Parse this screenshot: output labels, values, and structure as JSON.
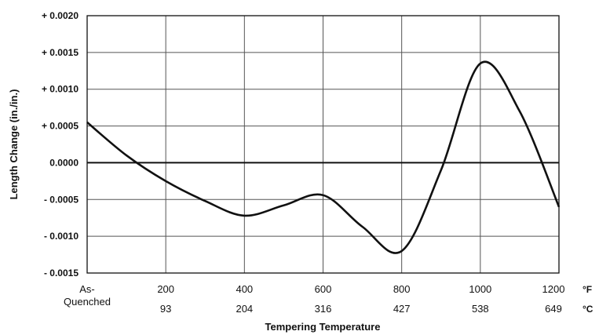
{
  "chart_data": {
    "type": "line",
    "title": "",
    "xlabel": "Tempering Temperature",
    "ylabel": "Length Change (in./in.)",
    "x_units": [
      "°F",
      "°C"
    ],
    "x_ticks": [
      {
        "f_lines": [
          "As-",
          "Quenched"
        ],
        "c": ""
      },
      {
        "f_lines": [
          "200"
        ],
        "c": "93"
      },
      {
        "f_lines": [
          "400"
        ],
        "c": "204"
      },
      {
        "f_lines": [
          "600"
        ],
        "c": "316"
      },
      {
        "f_lines": [
          "800"
        ],
        "c": "427"
      },
      {
        "f_lines": [
          "1000"
        ],
        "c": "538"
      },
      {
        "f_lines": [
          "1200"
        ],
        "c": "649"
      }
    ],
    "y_ticks": [
      {
        "value": 0.002,
        "label": "+ 0.0020"
      },
      {
        "value": 0.0015,
        "label": "+ 0.0015"
      },
      {
        "value": 0.001,
        "label": "+ 0.0010"
      },
      {
        "value": 0.0005,
        "label": "+ 0.0005"
      },
      {
        "value": 0.0,
        "label": "0.0000"
      },
      {
        "value": -0.0005,
        "label": "- 0.0005"
      },
      {
        "value": -0.001,
        "label": "- 0.0010"
      },
      {
        "value": -0.0015,
        "label": "- 0.0015"
      }
    ],
    "xlim": [
      0,
      1200
    ],
    "ylim": [
      -0.0015,
      0.002
    ],
    "grid": true,
    "series": [
      {
        "x": [
          0,
          100,
          200,
          300,
          400,
          500,
          600,
          700,
          800,
          900,
          1000,
          1100,
          1200
        ],
        "y": [
          0.00055,
          0.0001,
          -0.00025,
          -0.00052,
          -0.00072,
          -0.00058,
          -0.00044,
          -0.00087,
          -0.0012,
          -0.0001,
          0.00135,
          0.0007,
          -0.0006
        ]
      }
    ]
  }
}
